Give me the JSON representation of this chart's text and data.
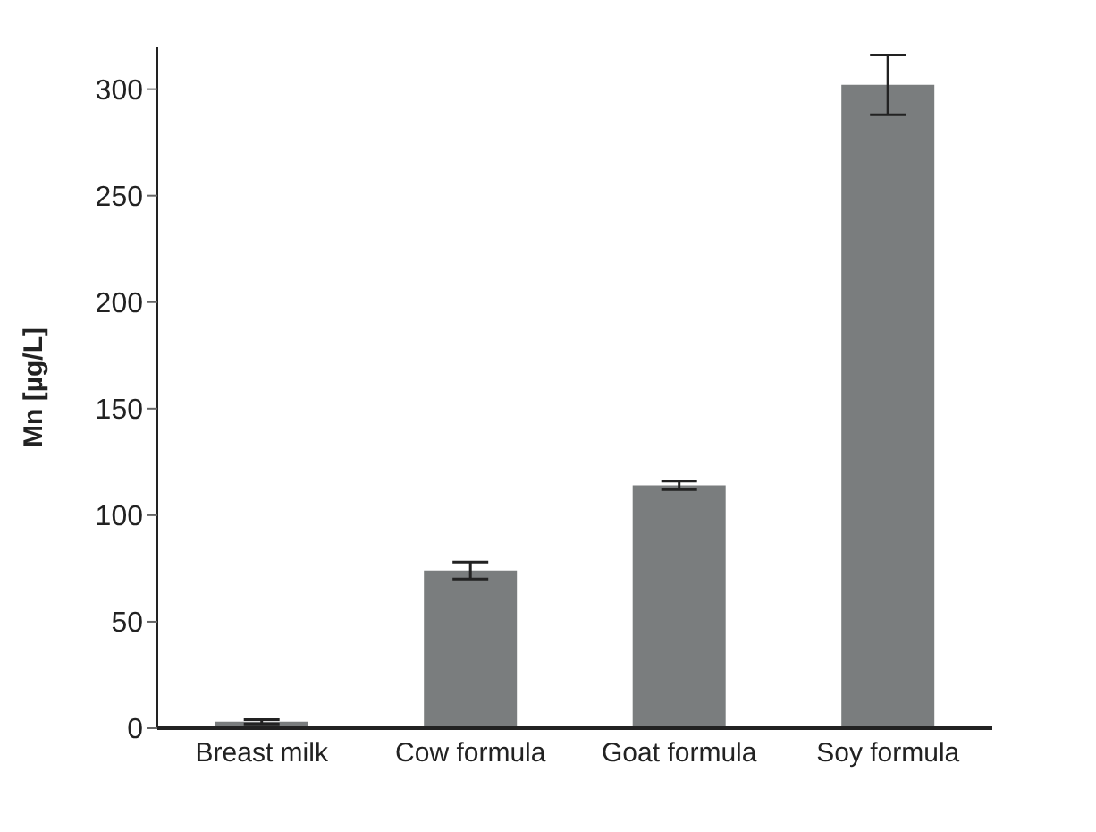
{
  "chart_data": {
    "type": "bar",
    "ylabel": "Mn [µg/L]",
    "categories": [
      "Breast milk",
      "Cow formula",
      "Goat formula",
      "Soy formula"
    ],
    "values": [
      3,
      74,
      114,
      302
    ],
    "errors": [
      1,
      4,
      2,
      14
    ],
    "color": "#7a7d7e",
    "ylim": [
      0,
      320
    ],
    "yticks": [
      0,
      50,
      100,
      150,
      200,
      250,
      300
    ],
    "grid": false
  }
}
